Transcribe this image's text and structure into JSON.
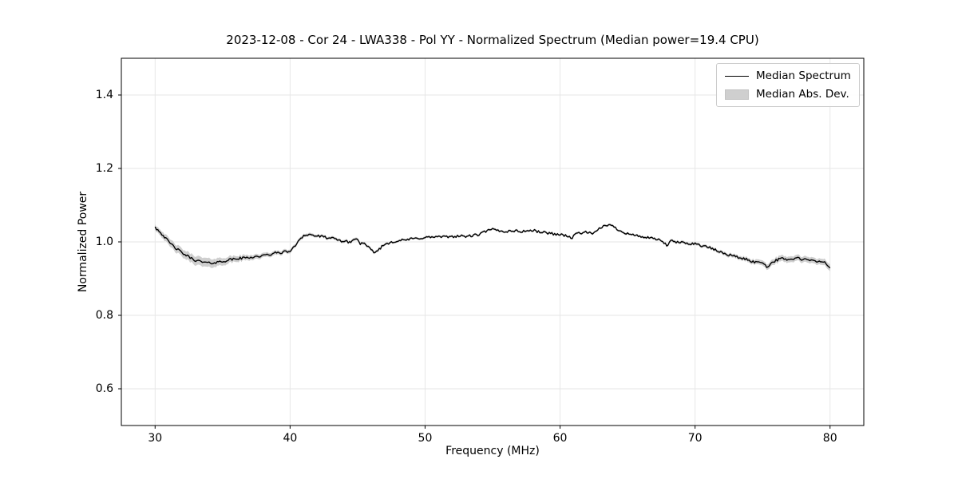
{
  "colors": {
    "line": "#000000",
    "band": "#cfcfcf",
    "grid": "#e6e6e6",
    "spine": "#000000",
    "background": "#ffffff"
  },
  "chart_data": {
    "type": "line",
    "title": "2023-12-08 - Cor 24 - LWA338 - Pol YY - Normalized Spectrum (Median power=19.4 CPU)",
    "xlabel": "Frequency (MHz)",
    "ylabel": "Normalized Power",
    "xlim": [
      27.5,
      82.5
    ],
    "ylim": [
      0.5,
      1.5
    ],
    "grid": true,
    "legend_position": "upper right",
    "xticks": [
      {
        "v": 30,
        "label": "30"
      },
      {
        "v": 40,
        "label": "40"
      },
      {
        "v": 50,
        "label": "50"
      },
      {
        "v": 60,
        "label": "60"
      },
      {
        "v": 70,
        "label": "70"
      },
      {
        "v": 80,
        "label": "80"
      }
    ],
    "yticks": [
      {
        "v": 0.6,
        "label": "0.6"
      },
      {
        "v": 0.8,
        "label": "0.8"
      },
      {
        "v": 1.0,
        "label": "1.0"
      },
      {
        "v": 1.2,
        "label": "1.2"
      },
      {
        "v": 1.4,
        "label": "1.4"
      }
    ],
    "series": [
      {
        "name": "Median Spectrum",
        "kind": "line",
        "color": "#000000",
        "x": [
          30.0,
          30.1,
          30.3,
          30.6,
          31.0,
          31.5,
          32.0,
          32.5,
          33.0,
          33.5,
          34.0,
          34.5,
          35.0,
          35.5,
          36.0,
          36.5,
          37.0,
          37.5,
          38.0,
          38.5,
          39.0,
          39.5,
          40.0,
          40.3,
          40.7,
          41.0,
          41.4,
          42.0,
          42.5,
          43.0,
          43.5,
          44.0,
          44.5,
          44.9,
          45.2,
          45.5,
          46.0,
          46.3,
          46.7,
          47.0,
          47.5,
          48.0,
          48.5,
          49.0,
          49.5,
          50.0,
          50.5,
          51.0,
          51.5,
          52.0,
          52.5,
          53.0,
          53.5,
          54.0,
          54.5,
          55.0,
          55.5,
          56.0,
          56.5,
          57.0,
          57.5,
          58.0,
          58.5,
          59.0,
          59.5,
          60.0,
          60.5,
          60.9,
          61.2,
          61.6,
          62.0,
          62.5,
          63.0,
          63.4,
          63.9,
          64.4,
          65.0,
          65.5,
          66.0,
          66.5,
          67.0,
          67.5,
          67.9,
          68.2,
          68.5,
          69.0,
          69.5,
          70.0,
          70.5,
          71.0,
          71.5,
          72.0,
          72.5,
          73.0,
          73.5,
          74.0,
          74.5,
          75.0,
          75.3,
          75.7,
          76.0,
          76.5,
          77.0,
          77.5,
          78.0,
          78.5,
          79.0,
          79.5,
          80.0
        ],
        "y": [
          1.043,
          1.036,
          1.03,
          1.018,
          1.0,
          0.984,
          0.97,
          0.959,
          0.95,
          0.945,
          0.942,
          0.944,
          0.947,
          0.951,
          0.954,
          0.956,
          0.958,
          0.96,
          0.962,
          0.966,
          0.97,
          0.972,
          0.975,
          0.985,
          1.008,
          1.017,
          1.02,
          1.016,
          1.013,
          1.01,
          1.006,
          1.001,
          1.0,
          1.01,
          0.996,
          0.994,
          0.978,
          0.971,
          0.984,
          0.993,
          1.0,
          1.003,
          1.005,
          1.008,
          1.01,
          1.012,
          1.013,
          1.014,
          1.013,
          1.015,
          1.016,
          1.015,
          1.017,
          1.02,
          1.029,
          1.034,
          1.03,
          1.028,
          1.031,
          1.028,
          1.03,
          1.031,
          1.027,
          1.025,
          1.022,
          1.02,
          1.017,
          1.01,
          1.024,
          1.025,
          1.026,
          1.022,
          1.038,
          1.047,
          1.043,
          1.031,
          1.023,
          1.018,
          1.015,
          1.011,
          1.008,
          1.004,
          0.99,
          1.002,
          1.0,
          0.998,
          0.996,
          0.995,
          0.99,
          0.985,
          0.978,
          0.97,
          0.965,
          0.96,
          0.955,
          0.95,
          0.944,
          0.946,
          0.931,
          0.944,
          0.95,
          0.955,
          0.951,
          0.956,
          0.952,
          0.95,
          0.946,
          0.947,
          0.93
        ]
      },
      {
        "name": "Median Abs. Dev.",
        "kind": "band",
        "color": "#cfcfcf",
        "x": [
          30,
          31,
          32,
          33,
          34,
          35,
          36,
          37,
          38,
          40,
          42,
          45,
          48,
          52,
          56,
          60,
          64,
          67,
          69,
          71,
          73,
          74,
          75,
          76,
          77,
          78,
          79,
          80
        ],
        "halfwidth": [
          0.007,
          0.01,
          0.011,
          0.012,
          0.012,
          0.01,
          0.008,
          0.007,
          0.006,
          0.005,
          0.004,
          0.004,
          0.003,
          0.003,
          0.003,
          0.003,
          0.003,
          0.003,
          0.004,
          0.004,
          0.005,
          0.006,
          0.007,
          0.008,
          0.008,
          0.008,
          0.008,
          0.009
        ]
      }
    ],
    "noise": {
      "seed": 42,
      "amplitude": 0.0035,
      "step_mhz": 0.1
    }
  },
  "legend": {
    "items": [
      {
        "label": "Median Spectrum",
        "swatch": "line-swatch-icon"
      },
      {
        "label": "Median Abs. Dev.",
        "swatch": "patch-swatch-icon"
      }
    ]
  }
}
